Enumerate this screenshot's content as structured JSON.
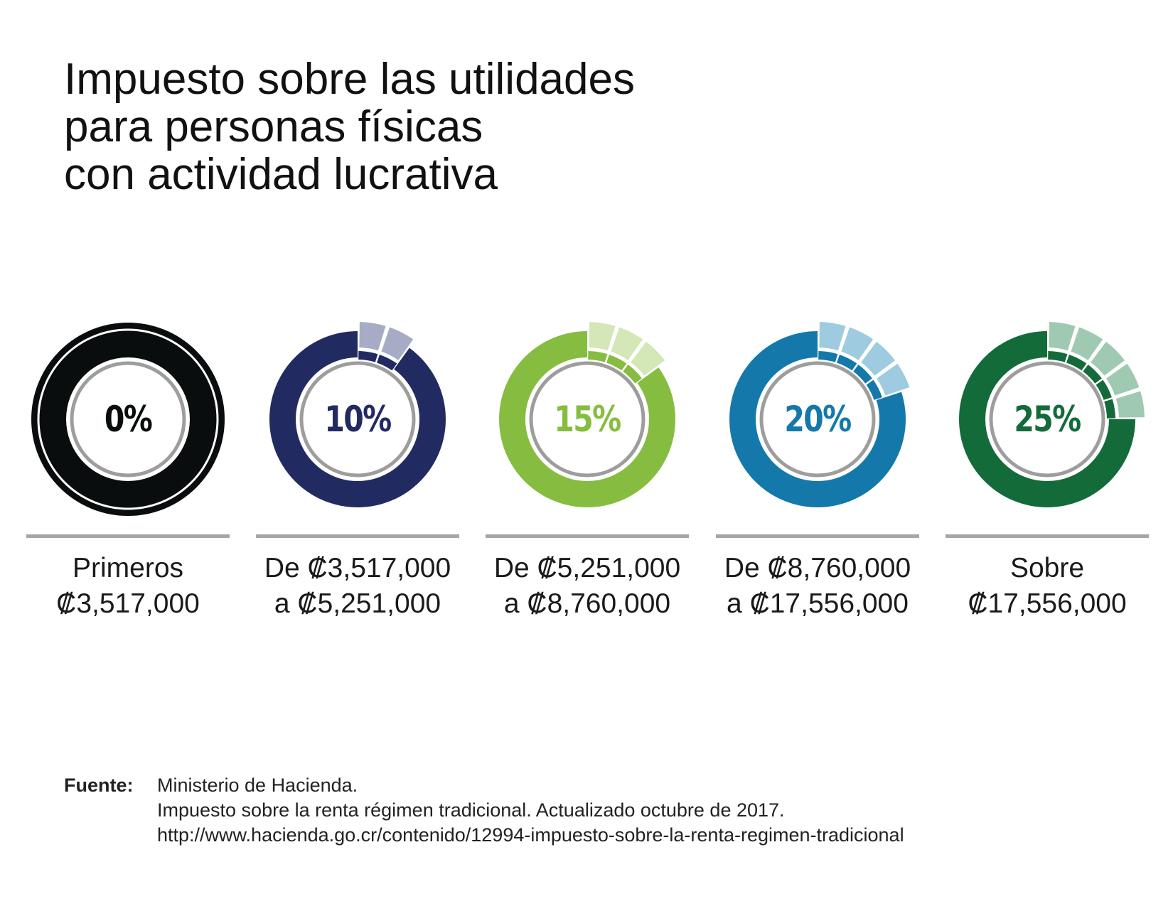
{
  "title": {
    "line1": "Impuesto sobre las utilidades",
    "line2": "para personas físicas",
    "line3": "con actividad lucrativa"
  },
  "chart_data": {
    "type": "donut-set",
    "title": "Impuesto sobre las utilidades para personas físicas con actividad lucrativa",
    "unit": "%",
    "brackets": [
      {
        "rate": 0,
        "label": "0%",
        "line1": "Primeros",
        "line2": "₡3,517,000",
        "color": "#0a0d0e",
        "light": "#0a0d0e"
      },
      {
        "rate": 10,
        "label": "10%",
        "line1": "De ₡3,517,000",
        "line2": "a ₡5,251,000",
        "color": "#222b61",
        "light": "#a6abc6"
      },
      {
        "rate": 15,
        "label": "15%",
        "line1": "De ₡5,251,000",
        "line2": "a ₡8,760,000",
        "color": "#86bd40",
        "light": "#d3e7b7"
      },
      {
        "rate": 20,
        "label": "20%",
        "line1": "De ₡8,760,000",
        "line2": "a ₡17,556,000",
        "color": "#1479aa",
        "light": "#9ecbe0"
      },
      {
        "rate": 25,
        "label": "25%",
        "line1": "Sobre",
        "line2": "₡17,556,000",
        "color": "#146b3a",
        "light": "#a0c9b1"
      }
    ]
  },
  "source": {
    "label": "Fuente:",
    "line1": "Ministerio de Hacienda.",
    "line2": "Impuesto sobre la renta régimen tradicional. Actualizado octubre de 2017.",
    "line3": "http://www.hacienda.go.cr/contenido/12994-impuesto-sobre-la-renta-regimen-tradicional"
  },
  "colors": {
    "divider": "#a6a6a6",
    "inner_ring": "#9d9d9d"
  }
}
